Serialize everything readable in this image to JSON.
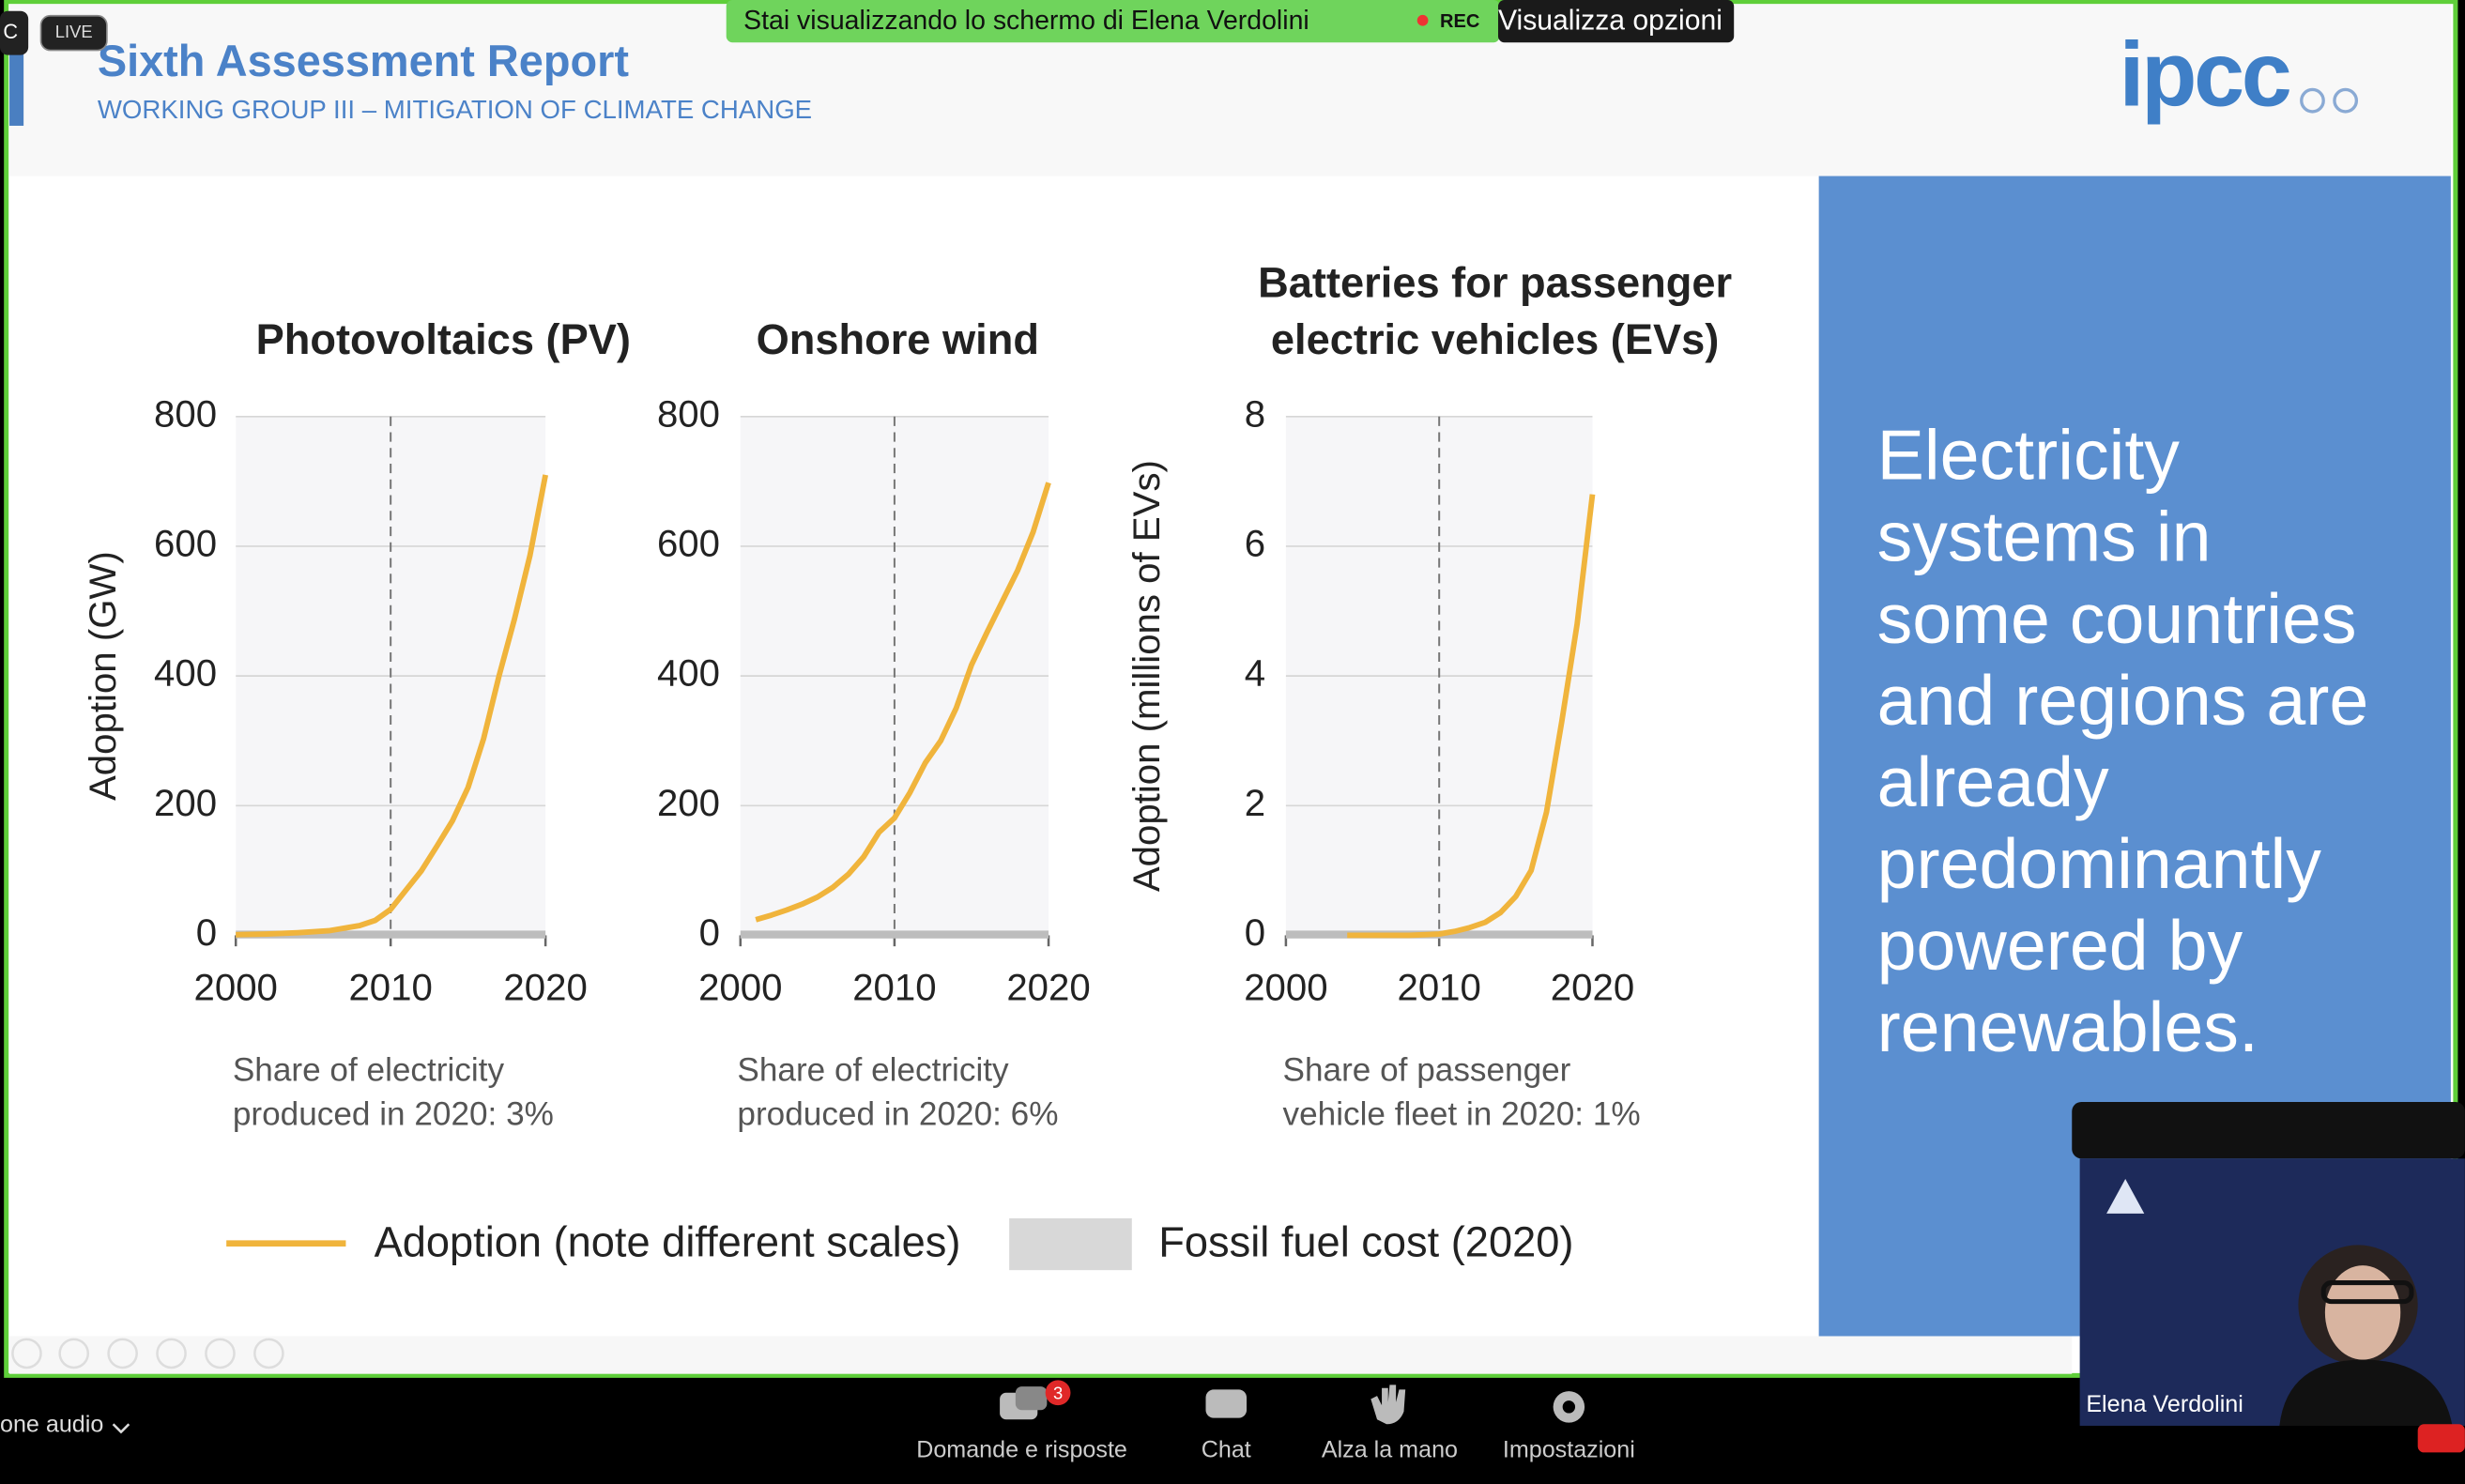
{
  "zoom": {
    "left_badge": "C",
    "live": "LIVE",
    "banner": "Stai visualizzando lo schermo di Elena Verdolini",
    "rec": "REC",
    "options": "Visualizza opzioni",
    "audio": "one audio",
    "toolbar": [
      {
        "label": "Domande e risposte",
        "badge": "3"
      },
      {
        "label": "Chat"
      },
      {
        "label": "Alza la mano"
      },
      {
        "label": "Impostazioni"
      }
    ],
    "participant": "Elena Verdolini"
  },
  "slide": {
    "title": "Sixth Assessment Report",
    "subtitle": "WORKING GROUP III – MITIGATION OF CLIMATE CHANGE",
    "logo": "ipcc",
    "panel_text": [
      "Electricity",
      "systems in",
      "some countries",
      "and regions are",
      "already",
      "predominantly",
      "powered by",
      "renewables."
    ],
    "legend": [
      "Adoption (note different scales)",
      "Fossil fuel cost (2020)"
    ]
  },
  "chart_data": [
    {
      "type": "line",
      "title": [
        "Photovoltaics (PV)"
      ],
      "ylabel": "Adoption (GW)",
      "x": [
        2000,
        2002,
        2004,
        2006,
        2008,
        2009,
        2010,
        2011,
        2012,
        2013,
        2014,
        2015,
        2016,
        2017,
        2018,
        2019,
        2020
      ],
      "values": [
        1,
        2,
        4,
        7,
        15,
        23,
        40,
        70,
        100,
        138,
        177,
        228,
        303,
        400,
        488,
        586,
        710
      ],
      "color": "#f0b43c",
      "xlim": [
        2000,
        2020
      ],
      "xticks": [
        2000,
        2010,
        2020
      ],
      "ylim": [
        0,
        800
      ],
      "yticks": [
        0,
        200,
        400,
        600,
        800
      ],
      "vline": 2010,
      "grid": true,
      "caption": [
        "Share of electricity",
        "produced in 2020: 3%"
      ]
    },
    {
      "type": "line",
      "title": [
        "Onshore wind"
      ],
      "x": [
        2001,
        2002,
        2003,
        2004,
        2005,
        2006,
        2007,
        2008,
        2009,
        2010,
        2011,
        2012,
        2013,
        2014,
        2015,
        2016,
        2017,
        2018,
        2019,
        2020
      ],
      "values": [
        24,
        31,
        39,
        48,
        59,
        74,
        94,
        121,
        159,
        181,
        220,
        266,
        300,
        350,
        417,
        467,
        515,
        563,
        622,
        698
      ],
      "color": "#f0b43c",
      "xlim": [
        2000,
        2020
      ],
      "xticks": [
        2000,
        2010,
        2020
      ],
      "ylim": [
        0,
        800
      ],
      "yticks": [
        0,
        200,
        400,
        600,
        800
      ],
      "vline": 2010,
      "grid": true,
      "caption": [
        "Share of electricity",
        "produced in 2020: 6%"
      ]
    },
    {
      "type": "line",
      "title": [
        "Batteries for passenger",
        "electric vehicles (EVs)"
      ],
      "ylabel": "Adoption (millions of EVs)",
      "x": [
        2004,
        2006,
        2008,
        2009,
        2010,
        2011,
        2012,
        2013,
        2014,
        2015,
        2016,
        2017,
        2018,
        2019,
        2020
      ],
      "values": [
        0,
        0,
        0,
        0.01,
        0.02,
        0.06,
        0.12,
        0.2,
        0.35,
        0.6,
        1.0,
        1.9,
        3.3,
        4.8,
        6.8
      ],
      "color": "#f0b43c",
      "xlim": [
        2000,
        2020
      ],
      "xticks": [
        2000,
        2010,
        2020
      ],
      "ylim": [
        0,
        8
      ],
      "yticks": [
        0,
        2,
        4,
        6,
        8
      ],
      "vline": 2010,
      "grid": true,
      "caption": [
        "Share of passenger",
        "vehicle fleet in 2020: 1%"
      ]
    }
  ]
}
